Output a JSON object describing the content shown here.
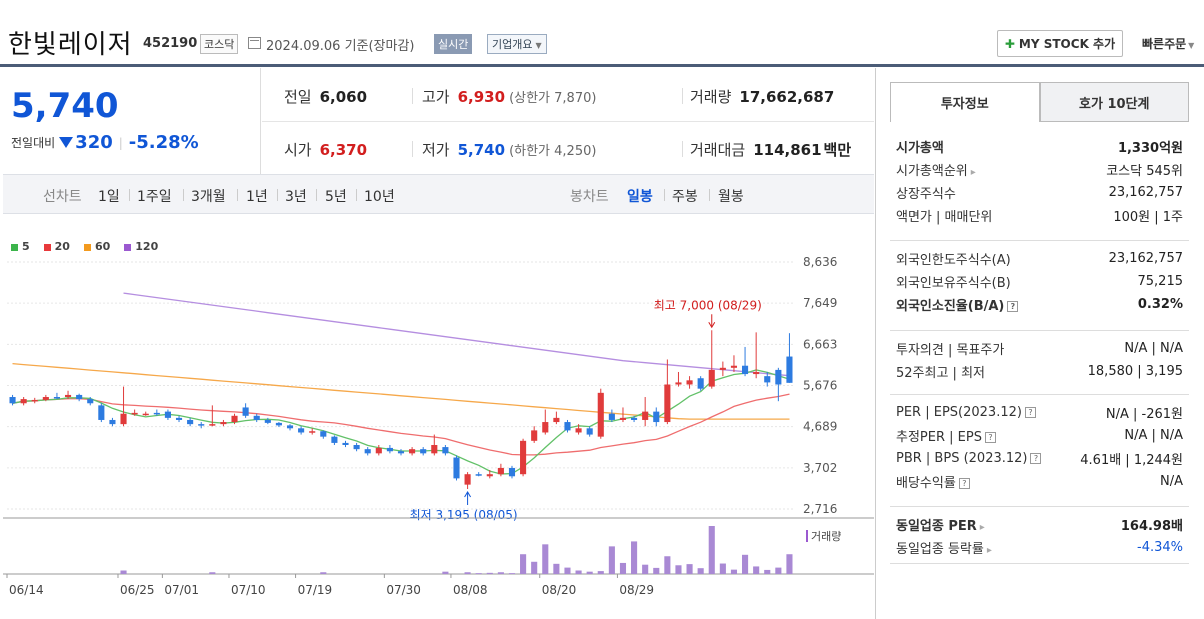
{
  "header": {
    "name": "한빛레이저",
    "code": "452190",
    "market": "코스닥",
    "date": "2024.09.06 기준(장마감)",
    "realtime": "실시간",
    "corp_info": "기업개요",
    "mystock": "MY STOCK 추가",
    "quick_order": "빠른주문"
  },
  "price": {
    "current": "5,740",
    "change_label": "전일대비",
    "change_amount": "320",
    "change_rate": "-5.28%"
  },
  "stats": {
    "prev_label": "전일",
    "prev": "6,060",
    "high_label": "고가",
    "high": "6,930",
    "upper_limit": "(상한가 7,870)",
    "volume_label": "거래량",
    "volume": "17,662,687",
    "open_label": "시가",
    "open": "6,370",
    "low_label": "저가",
    "low": "5,740",
    "lower_limit": "(하한가 4,250)",
    "amount_label": "거래대금",
    "amount": "114,861",
    "amount_unit": "백만"
  },
  "period": {
    "line_label": "선차트",
    "line_items": [
      "1일",
      "1주일",
      "3개월",
      "1년",
      "3년",
      "5년",
      "10년"
    ],
    "candle_label": "봉차트",
    "candle_items": [
      "일봉",
      "주봉",
      "월봉"
    ],
    "active_candle": "일봉"
  },
  "chart_data": {
    "type": "candlestick",
    "legend": [
      {
        "name": "5",
        "color": "#3cb44b"
      },
      {
        "name": "20",
        "color": "#e8393b"
      },
      {
        "name": "60",
        "color": "#f39a1e"
      },
      {
        "name": "120",
        "color": "#9b59d0"
      }
    ],
    "y_ticks": [
      "8,636",
      "7,649",
      "6,663",
      "5,676",
      "4,689",
      "3,702",
      "2,716"
    ],
    "ylim": [
      2716,
      8636
    ],
    "x_ticks": [
      "06/14",
      "06/25",
      "07/01",
      "07/10",
      "07/19",
      "07/30",
      "08/08",
      "08/20",
      "08/29"
    ],
    "high_annotation": "최고 7,000 (08/29)",
    "low_annotation": "최저 3,195 (08/05)",
    "volume_label": "거래량",
    "candles": [
      {
        "o": 5400,
        "c": 5250,
        "h": 5450,
        "l": 5200
      },
      {
        "o": 5250,
        "c": 5350,
        "h": 5400,
        "l": 5200
      },
      {
        "o": 5300,
        "c": 5330,
        "h": 5380,
        "l": 5250
      },
      {
        "o": 5330,
        "c": 5400,
        "h": 5450,
        "l": 5300
      },
      {
        "o": 5400,
        "c": 5380,
        "h": 5500,
        "l": 5350
      },
      {
        "o": 5400,
        "c": 5450,
        "h": 5550,
        "l": 5350
      },
      {
        "o": 5450,
        "c": 5350,
        "h": 5480,
        "l": 5300
      },
      {
        "o": 5350,
        "c": 5250,
        "h": 5400,
        "l": 5200
      },
      {
        "o": 5200,
        "c": 4850,
        "h": 5250,
        "l": 4800
      },
      {
        "o": 4850,
        "c": 4750,
        "h": 4900,
        "l": 4700
      },
      {
        "o": 4750,
        "c": 5000,
        "h": 5650,
        "l": 4700
      },
      {
        "o": 5000,
        "c": 5020,
        "h": 5100,
        "l": 4950
      },
      {
        "o": 5000,
        "c": 5000,
        "h": 5050,
        "l": 4950
      },
      {
        "o": 5020,
        "c": 5010,
        "h": 5100,
        "l": 4950
      },
      {
        "o": 5050,
        "c": 4900,
        "h": 5100,
        "l": 4850
      },
      {
        "o": 4900,
        "c": 4850,
        "h": 4950,
        "l": 4800
      },
      {
        "o": 4850,
        "c": 4750,
        "h": 4900,
        "l": 4700
      },
      {
        "o": 4750,
        "c": 4720,
        "h": 4800,
        "l": 4650
      },
      {
        "o": 4720,
        "c": 4750,
        "h": 5200,
        "l": 4700
      },
      {
        "o": 4750,
        "c": 4800,
        "h": 4850,
        "l": 4700
      },
      {
        "o": 4800,
        "c": 4950,
        "h": 5000,
        "l": 4750
      },
      {
        "o": 5150,
        "c": 4950,
        "h": 5250,
        "l": 4900
      },
      {
        "o": 4950,
        "c": 4850,
        "h": 5000,
        "l": 4800
      },
      {
        "o": 4850,
        "c": 4780,
        "h": 4900,
        "l": 4750
      },
      {
        "o": 4780,
        "c": 4720,
        "h": 4800,
        "l": 4680
      },
      {
        "o": 4720,
        "c": 4650,
        "h": 4750,
        "l": 4600
      },
      {
        "o": 4650,
        "c": 4550,
        "h": 4700,
        "l": 4500
      },
      {
        "o": 4550,
        "c": 4580,
        "h": 4650,
        "l": 4500
      },
      {
        "o": 4580,
        "c": 4450,
        "h": 4600,
        "l": 4400
      },
      {
        "o": 4450,
        "c": 4300,
        "h": 4480,
        "l": 4250
      },
      {
        "o": 4300,
        "c": 4250,
        "h": 4350,
        "l": 4200
      },
      {
        "o": 4250,
        "c": 4150,
        "h": 4300,
        "l": 4100
      },
      {
        "o": 4150,
        "c": 4050,
        "h": 4200,
        "l": 4000
      },
      {
        "o": 4050,
        "c": 4180,
        "h": 4250,
        "l": 4000
      },
      {
        "o": 4180,
        "c": 4100,
        "h": 4250,
        "l": 4050
      },
      {
        "o": 4100,
        "c": 4050,
        "h": 4150,
        "l": 4000
      },
      {
        "o": 4050,
        "c": 4150,
        "h": 4200,
        "l": 4000
      },
      {
        "o": 4150,
        "c": 4050,
        "h": 4200,
        "l": 4000
      },
      {
        "o": 4050,
        "c": 4250,
        "h": 4500,
        "l": 4000
      },
      {
        "o": 4200,
        "c": 4050,
        "h": 4250,
        "l": 4000
      },
      {
        "o": 3950,
        "c": 3450,
        "h": 4000,
        "l": 3400
      },
      {
        "o": 3300,
        "c": 3550,
        "h": 3600,
        "l": 3195
      },
      {
        "o": 3550,
        "c": 3520,
        "h": 3600,
        "l": 3500
      },
      {
        "o": 3500,
        "c": 3550,
        "h": 3650,
        "l": 3450
      },
      {
        "o": 3550,
        "c": 3700,
        "h": 3800,
        "l": 3500
      },
      {
        "o": 3700,
        "c": 3500,
        "h": 3750,
        "l": 3450
      },
      {
        "o": 3550,
        "c": 4350,
        "h": 4400,
        "l": 3500
      },
      {
        "o": 4350,
        "c": 4600,
        "h": 4700,
        "l": 4300
      },
      {
        "o": 4550,
        "c": 4800,
        "h": 5100,
        "l": 4500
      },
      {
        "o": 4800,
        "c": 4900,
        "h": 5050,
        "l": 4750
      },
      {
        "o": 4800,
        "c": 4600,
        "h": 4850,
        "l": 4550
      },
      {
        "o": 4550,
        "c": 4650,
        "h": 4750,
        "l": 4500
      },
      {
        "o": 4650,
        "c": 4500,
        "h": 4700,
        "l": 4450
      },
      {
        "o": 4450,
        "c": 5500,
        "h": 5600,
        "l": 4400
      },
      {
        "o": 5000,
        "c": 4850,
        "h": 5100,
        "l": 4800
      },
      {
        "o": 4850,
        "c": 4900,
        "h": 5150,
        "l": 4800
      },
      {
        "o": 4900,
        "c": 4850,
        "h": 4950,
        "l": 4800
      },
      {
        "o": 4850,
        "c": 5050,
        "h": 5400,
        "l": 4700
      },
      {
        "o": 5050,
        "c": 4800,
        "h": 5150,
        "l": 4700
      },
      {
        "o": 4800,
        "c": 5700,
        "h": 6300,
        "l": 4750
      },
      {
        "o": 5700,
        "c": 5750,
        "h": 6000,
        "l": 5650
      },
      {
        "o": 5700,
        "c": 5800,
        "h": 5900,
        "l": 5600
      },
      {
        "o": 5850,
        "c": 5600,
        "h": 5900,
        "l": 5550
      },
      {
        "o": 5650,
        "c": 6050,
        "h": 7000,
        "l": 5600
      },
      {
        "o": 6050,
        "c": 6100,
        "h": 6250,
        "l": 5900
      },
      {
        "o": 6100,
        "c": 6150,
        "h": 6400,
        "l": 6000
      },
      {
        "o": 6150,
        "c": 5950,
        "h": 6600,
        "l": 5900
      },
      {
        "o": 5950,
        "c": 6000,
        "h": 6950,
        "l": 5850
      },
      {
        "o": 5900,
        "c": 5750,
        "h": 6000,
        "l": 5650
      },
      {
        "o": 6050,
        "c": 5700,
        "h": 6100,
        "l": 5300
      },
      {
        "o": 6370,
        "c": 5740,
        "h": 6930,
        "l": 5740
      }
    ],
    "volumes": [
      0,
      0,
      0,
      0,
      0,
      0,
      0,
      0,
      0,
      0,
      1.2,
      0,
      0,
      0,
      0,
      0,
      0,
      0,
      0.6,
      0,
      0,
      0,
      0,
      0,
      0,
      0,
      0,
      0,
      0.6,
      0,
      0,
      0,
      0,
      0,
      0,
      0,
      0,
      0,
      0,
      0.8,
      0,
      0.6,
      0.3,
      0.4,
      0.6,
      0.3,
      6.8,
      4.2,
      10.2,
      3.5,
      2.2,
      1.2,
      0.8,
      1.0,
      9.5,
      3.8,
      11.2,
      3.2,
      2.1,
      6.1,
      3.0,
      3.4,
      2.0,
      16.5,
      3.6,
      1.5,
      6.6,
      2.6,
      1.4,
      2.2,
      6.8
    ]
  },
  "tabs": {
    "invest": "투자정보",
    "quote": "호가 10단계"
  },
  "info": {
    "s1": [
      {
        "k": "시가총액",
        "v": "1,330억원",
        "bold": true
      },
      {
        "k": "시가총액순위",
        "v": "코스닥 545위",
        "chev": true
      },
      {
        "k": "상장주식수",
        "v": "23,162,757"
      },
      {
        "k": "액면가 | 매매단위",
        "v": "100원 | 1주"
      }
    ],
    "s2": [
      {
        "k": "외국인한도주식수(A)",
        "v": "23,162,757"
      },
      {
        "k": "외국인보유주식수(B)",
        "v": "75,215"
      },
      {
        "k": "외국인소진율(B/A)",
        "v": "0.32%",
        "bold": true,
        "q": true
      }
    ],
    "s3": [
      {
        "k": "투자의견 | 목표주가",
        "v": "N/A | N/A"
      },
      {
        "k": "52주최고 | 최저",
        "v": "18,580 | 3,195"
      }
    ],
    "s4": [
      {
        "k": "PER | EPS(2023.12)",
        "v": "N/A | -261원",
        "q": true
      },
      {
        "k": "추정PER | EPS",
        "v": "N/A | N/A",
        "q": true
      },
      {
        "k": "PBR | BPS (2023.12)",
        "v": "4.61배 | 1,244원",
        "q": true
      },
      {
        "k": "배당수익률",
        "v": "N/A",
        "q": true
      }
    ],
    "s5": [
      {
        "k": "동일업종 PER",
        "v": "164.98배",
        "bold": true,
        "chev": true
      },
      {
        "k": "동일업종 등락률",
        "v": "-4.34%",
        "chev": true,
        "vcolor": "#1056d6"
      }
    ]
  }
}
